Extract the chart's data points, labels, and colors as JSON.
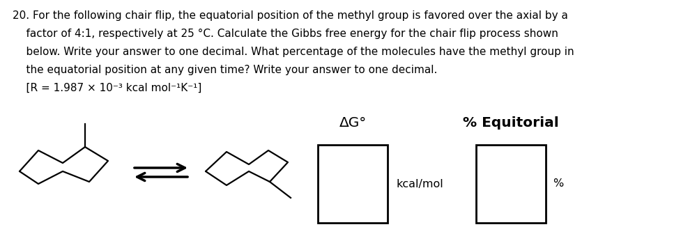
{
  "body_line1": "20. For the following chair flip, the equatorial position of the methyl group is favored over the axial by a",
  "body_line2": "    factor of 4:1, respectively at 25 °C. Calculate the Gibbs free energy for the chair flip process shown",
  "body_line3": "    below. Write your answer to one decimal. What percentage of the molecules have the methyl group in",
  "body_line4": "    the equatorial position at any given time? Write your answer to one decimal.",
  "body_line5": "    [R = 1.987 × 10⁻³ kcal mol⁻¹K⁻¹]",
  "label_delta_g": "ΔG°",
  "label_percent": "% Equitorial",
  "label_kcal": "kcal/mol",
  "label_pct": "%",
  "bg_color": "#ffffff",
  "text_color": "#000000",
  "box_color": "#000000",
  "font_size_body": 11.0,
  "font_size_label": 14.5,
  "font_size_units": 11.5
}
